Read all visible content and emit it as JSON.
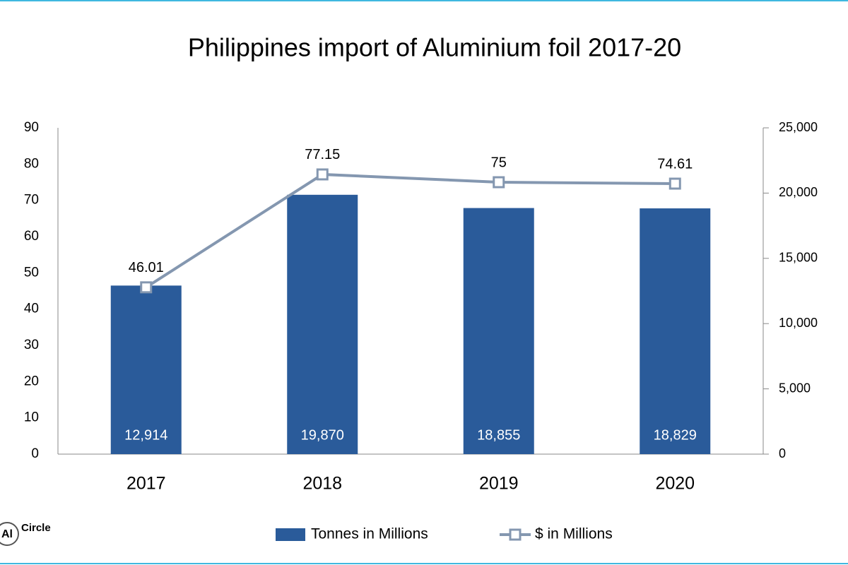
{
  "chart_data": {
    "type": "combo",
    "title": "Philippines import of Aluminium foil 2017-20",
    "categories": [
      "2017",
      "2018",
      "2019",
      "2020"
    ],
    "series": [
      {
        "name": "Tonnes in Millions",
        "type": "bar",
        "axis": "y2",
        "color": "#2a5b9a",
        "values": [
          12914,
          19870,
          18855,
          18829
        ],
        "value_labels": [
          "12,914",
          "19,870",
          "18,855",
          "18,829"
        ]
      },
      {
        "name": "$ in Millions",
        "type": "line",
        "color": "#8497b0",
        "values": [
          46.01,
          77.15,
          75,
          74.61
        ]
      }
    ],
    "ylim": [
      0,
      90
    ],
    "yticks": [
      0,
      10,
      20,
      30,
      40,
      50,
      60,
      70,
      80,
      90
    ],
    "y2lim": [
      0,
      25000
    ],
    "y2ticks": [
      0,
      {
        "value": 5000,
        "label": "5,000"
      },
      {
        "value": 10000,
        "label": "10,000"
      },
      {
        "value": 15000,
        "label": "15,000"
      },
      {
        "value": 20000,
        "label": "20,000"
      },
      {
        "value": 25000,
        "label": "25,000"
      }
    ],
    "grid": false,
    "legend": "bottom"
  },
  "logo": {
    "mark": "Al",
    "name": "Circle"
  }
}
